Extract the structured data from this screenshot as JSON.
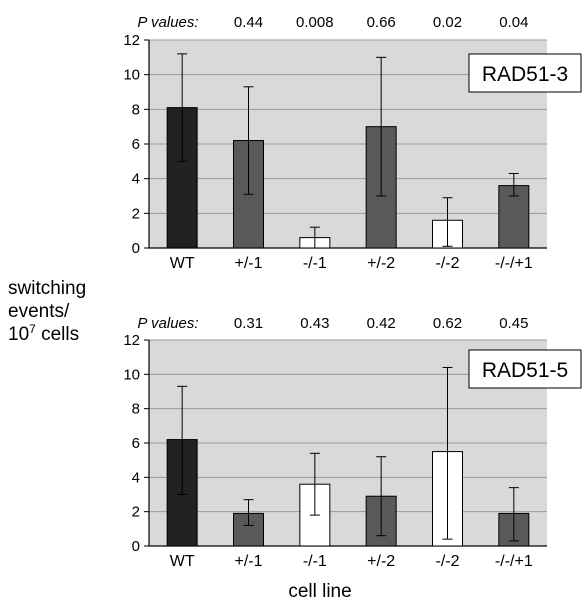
{
  "ylabel_lines": [
    "switching",
    "events/",
    "10",
    "7",
    " cells"
  ],
  "xlabel": "cell line",
  "pvalue_heading": "P values:",
  "chart_data": [
    {
      "type": "bar",
      "panel_label": "RAD51-3",
      "categories": [
        "WT",
        "+/-1",
        "-/-1",
        "+/-2",
        "-/-2",
        "-/-/+1"
      ],
      "values": [
        8.1,
        6.2,
        0.6,
        7.0,
        1.6,
        3.6
      ],
      "error_low": [
        5.0,
        3.1,
        0.0,
        3.0,
        0.1,
        3.0
      ],
      "error_high": [
        11.2,
        9.3,
        1.2,
        11.0,
        2.9,
        4.3
      ],
      "bar_fill": [
        "#222222",
        "#595959",
        "#ffffff",
        "#595959",
        "#ffffff",
        "#595959"
      ],
      "pvalues": [
        "0.44",
        "0.008",
        "0.66",
        "0.02",
        "0.04"
      ],
      "ylim": [
        0,
        12
      ],
      "yticks": [
        "0",
        "2",
        "4",
        "6",
        "8",
        "10",
        "12"
      ],
      "grid": true
    },
    {
      "type": "bar",
      "panel_label": "RAD51-5",
      "categories": [
        "WT",
        "+/-1",
        "-/-1",
        "+/-2",
        "-/-2",
        "-/-/+1"
      ],
      "values": [
        6.2,
        1.9,
        3.6,
        2.9,
        5.5,
        1.9
      ],
      "error_low": [
        3.0,
        1.2,
        1.8,
        0.6,
        0.4,
        0.3
      ],
      "error_high": [
        9.3,
        2.7,
        5.4,
        5.2,
        10.4,
        3.4
      ],
      "bar_fill": [
        "#222222",
        "#595959",
        "#ffffff",
        "#595959",
        "#ffffff",
        "#595959"
      ],
      "pvalues": [
        "0.31",
        "0.43",
        "0.42",
        "0.62",
        "0.45"
      ],
      "ylim": [
        0,
        12
      ],
      "yticks": [
        "0",
        "2",
        "4",
        "6",
        "8",
        "10",
        "12"
      ],
      "grid": true
    }
  ],
  "colors": {
    "plot_bg": "#d9d9d9",
    "grid": "#9a9a9a",
    "bar_stroke": "#000000"
  }
}
